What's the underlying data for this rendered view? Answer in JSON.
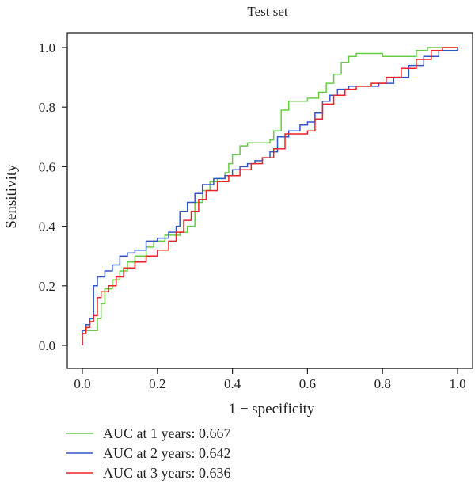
{
  "chart_data": {
    "type": "line",
    "title": "Test set",
    "xlabel": "1 − specificity",
    "ylabel": "Sensitivity",
    "xlim": [
      0,
      1
    ],
    "ylim": [
      0,
      1
    ],
    "xticks": [
      "0.0",
      "0.2",
      "0.4",
      "0.6",
      "0.8",
      "1.0"
    ],
    "yticks": [
      "0.0",
      "0.2",
      "0.4",
      "0.6",
      "0.8",
      "1.0"
    ],
    "grid": false,
    "legend_position": "bottom-left",
    "series": [
      {
        "name": "AUC at 1 years: 0.667",
        "color": "#66cc44",
        "x": [
          0.0,
          0.0,
          0.01,
          0.02,
          0.04,
          0.05,
          0.06,
          0.08,
          0.1,
          0.12,
          0.14,
          0.17,
          0.19,
          0.22,
          0.24,
          0.26,
          0.28,
          0.3,
          0.32,
          0.34,
          0.36,
          0.38,
          0.39,
          0.4,
          0.42,
          0.44,
          0.46,
          0.48,
          0.5,
          0.51,
          0.53,
          0.55,
          0.57,
          0.6,
          0.63,
          0.65,
          0.67,
          0.69,
          0.71,
          0.73,
          0.76,
          0.8,
          0.85,
          0.89,
          0.92,
          0.95,
          1.0
        ],
        "y": [
          0.0,
          0.04,
          0.05,
          0.05,
          0.09,
          0.14,
          0.19,
          0.22,
          0.25,
          0.28,
          0.3,
          0.33,
          0.35,
          0.37,
          0.37,
          0.38,
          0.4,
          0.48,
          0.52,
          0.55,
          0.56,
          0.58,
          0.61,
          0.64,
          0.67,
          0.68,
          0.68,
          0.68,
          0.69,
          0.72,
          0.79,
          0.82,
          0.82,
          0.83,
          0.85,
          0.88,
          0.91,
          0.95,
          0.97,
          0.98,
          0.98,
          0.97,
          0.97,
          0.99,
          1.0,
          1.0,
          1.0
        ]
      },
      {
        "name": "AUC at 2 years: 0.642",
        "color": "#3355cc",
        "x": [
          0.0,
          0.0,
          0.01,
          0.02,
          0.03,
          0.03,
          0.04,
          0.06,
          0.08,
          0.1,
          0.12,
          0.14,
          0.17,
          0.2,
          0.23,
          0.25,
          0.26,
          0.28,
          0.3,
          0.32,
          0.35,
          0.38,
          0.4,
          0.42,
          0.44,
          0.46,
          0.48,
          0.5,
          0.52,
          0.55,
          0.58,
          0.6,
          0.62,
          0.64,
          0.66,
          0.68,
          0.71,
          0.75,
          0.79,
          0.83,
          0.87,
          0.91,
          0.95,
          1.0
        ],
        "y": [
          0.0,
          0.05,
          0.07,
          0.09,
          0.12,
          0.2,
          0.23,
          0.25,
          0.27,
          0.3,
          0.31,
          0.32,
          0.35,
          0.36,
          0.38,
          0.4,
          0.45,
          0.48,
          0.51,
          0.54,
          0.56,
          0.57,
          0.59,
          0.6,
          0.61,
          0.62,
          0.63,
          0.65,
          0.7,
          0.72,
          0.74,
          0.75,
          0.78,
          0.82,
          0.84,
          0.86,
          0.87,
          0.87,
          0.88,
          0.9,
          0.94,
          0.97,
          0.99,
          1.0
        ]
      },
      {
        "name": "AUC at 3 years: 0.636",
        "color": "#ee2222",
        "x": [
          0.0,
          0.0,
          0.01,
          0.02,
          0.03,
          0.04,
          0.05,
          0.07,
          0.09,
          0.11,
          0.14,
          0.17,
          0.2,
          0.23,
          0.25,
          0.27,
          0.29,
          0.31,
          0.33,
          0.36,
          0.39,
          0.42,
          0.45,
          0.48,
          0.51,
          0.54,
          0.58,
          0.6,
          0.62,
          0.64,
          0.67,
          0.7,
          0.73,
          0.77,
          0.81,
          0.85,
          0.89,
          0.93,
          0.96,
          1.0
        ],
        "y": [
          0.0,
          0.04,
          0.06,
          0.08,
          0.1,
          0.16,
          0.18,
          0.2,
          0.23,
          0.26,
          0.28,
          0.3,
          0.32,
          0.35,
          0.38,
          0.42,
          0.45,
          0.49,
          0.52,
          0.55,
          0.57,
          0.59,
          0.61,
          0.63,
          0.66,
          0.71,
          0.71,
          0.72,
          0.76,
          0.81,
          0.84,
          0.86,
          0.87,
          0.88,
          0.9,
          0.93,
          0.96,
          0.99,
          1.0,
          1.0
        ]
      }
    ]
  }
}
